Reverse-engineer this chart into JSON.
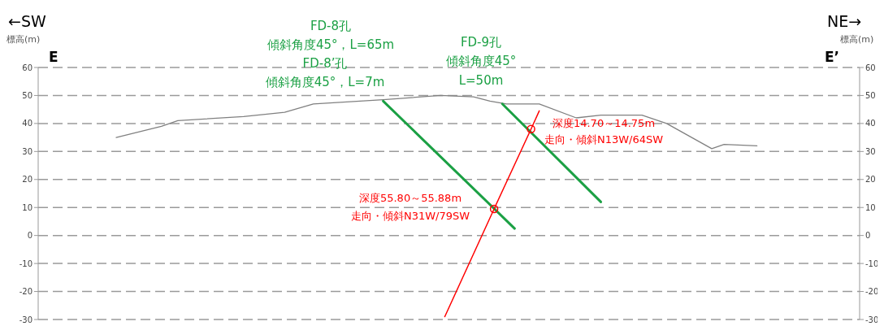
{
  "chart_data": {
    "type": "line",
    "ylabel": "標高(m)",
    "y2label": "標高(m)",
    "annotations": [
      "←SW",
      "NE→",
      "E",
      "E’",
      "FD-8孔",
      "傾斜角度45°，L=65m",
      "FD-8’孔",
      "傾斜角度45°，L=7m",
      "FD-9孔",
      "傾斜角度45°",
      "L=50m",
      "深度14.70～14.75m",
      "走向・傾斜N13W/64SW",
      "深度55.80～55.88m",
      "走向・傾斜N31W/79SW"
    ],
    "categories": [
      null,
      null,
      null,
      null,
      null,
      null,
      null,
      null,
      null,
      null,
      null,
      null,
      null,
      null,
      null,
      null,
      null,
      null,
      null,
      null,
      null,
      null,
      null,
      null,
      null,
      null,
      null,
      null,
      null,
      null,
      null,
      null,
      null,
      null,
      null,
      null,
      null,
      null,
      null,
      null,
      null,
      null,
      null,
      null,
      null,
      null,
      null,
      null,
      null,
      null,
      null,
      null,
      null,
      null,
      null,
      null,
      null,
      null,
      null,
      null,
      null,
      null,
      null,
      null,
      null,
      null,
      null,
      null,
      null,
      null,
      null,
      null,
      null,
      null,
      null,
      null,
      null,
      null,
      null,
      null,
      null,
      null,
      null,
      null,
      null,
      null,
      null,
      null,
      null,
      null,
      null,
      null,
      null,
      null,
      null,
      null,
      null,
      null,
      null,
      null,
      null,
      null,
      null,
      null,
      null,
      null,
      null,
      null,
      null,
      null,
      null,
      null,
      null,
      null,
      null,
      null,
      null,
      null,
      null,
      null,
      null,
      null,
      null,
      null,
      null,
      null,
      null,
      null,
      null,
      null,
      null,
      null,
      null,
      null,
      null,
      null,
      null,
      null,
      null,
      null,
      null,
      null,
      null,
      null,
      null,
      null,
      null,
      null,
      null,
      null,
      null,
      null,
      null,
      null,
      null,
      null,
      null,
      null,
      null,
      null,
      null,
      null,
      null,
      null,
      null,
      null,
      null,
      null,
      null,
      null,
      null,
      null,
      null,
      null,
      null,
      null,
      null,
      null,
      null,
      null,
      null,
      null,
      null,
      null,
      null,
      null,
      null,
      null,
      null,
      null,
      null,
      null,
      null,
      null,
      null,
      null,
      null,
      null,
      null,
      null,
      null
    ],
    "series": [
      {
        "type": "line",
        "color": "#808080",
        "values": [
          null,
          null,
          null,
          null,
          null,
          null,
          null,
          null,
          null,
          null,
          null,
          null,
          null,
          null,
          null,
          null,
          null,
          null,
          null,
          35,
          null,
          null,
          null,
          null,
          null,
          null,
          null,
          null,
          null,
          null,
          39,
          null,
          null,
          null,
          41,
          null,
          null,
          null,
          null,
          null,
          null,
          null,
          null,
          null,
          null,
          null,
          null,
          null,
          null,
          null,
          42.5,
          null,
          null,
          null,
          null,
          null,
          null,
          null,
          null,
          null,
          44,
          null,
          null,
          null,
          null,
          null,
          null,
          47,
          null,
          null,
          null,
          null,
          null,
          null,
          null,
          null,
          null,
          null,
          null,
          null,
          null,
          null,
          null,
          null,
          48.5,
          null,
          null,
          null,
          null,
          null,
          null,
          null,
          null,
          null,
          null,
          null,
          null,
          null,
          50,
          null,
          null,
          null,
          null,
          null,
          null,
          null,
          49.5,
          null,
          null,
          null,
          48,
          null,
          null,
          null,
          47,
          null,
          null,
          null,
          null,
          null,
          null,
          null,
          47,
          null,
          null,
          null,
          null,
          null,
          null,
          null,
          null,
          42,
          null,
          null,
          null,
          null,
          null,
          43,
          null,
          null,
          null,
          null,
          null,
          null,
          null,
          null,
          null,
          43,
          null,
          null,
          null,
          null,
          null,
          40,
          null,
          null,
          null,
          null,
          null,
          null,
          null,
          null,
          null,
          null,
          31,
          null,
          null,
          32.5,
          null,
          null,
          null,
          null,
          null,
          null,
          null,
          32,
          null,
          null,
          null,
          null,
          null,
          null,
          null,
          null,
          null,
          null,
          null,
          null,
          null,
          null,
          null,
          null,
          null,
          null,
          null,
          null,
          null,
          null,
          null,
          null,
          null
        ]
      },
      {
        "type": "line",
        "color": "#1ba044",
        "values": [
          null,
          null,
          null,
          null,
          null,
          null,
          null,
          null,
          null,
          null,
          null,
          null,
          null,
          null,
          null,
          null,
          null,
          null,
          null,
          null,
          null,
          null,
          null,
          null,
          null,
          null,
          null,
          null,
          null,
          null,
          null,
          null,
          null,
          null,
          null,
          null,
          null,
          null,
          null,
          null,
          null,
          null,
          null,
          null,
          null,
          null,
          null,
          null,
          null,
          null,
          null,
          null,
          null,
          null,
          null,
          null,
          null,
          null,
          null,
          null,
          null,
          null,
          null,
          null,
          null,
          null,
          null,
          null,
          null,
          null,
          null,
          null,
          null,
          null,
          null,
          null,
          null,
          null,
          null,
          null,
          null,
          null,
          null,
          null,
          48,
          null,
          null,
          null,
          null,
          null,
          null,
          null,
          null,
          null,
          null,
          null,
          null,
          null,
          null,
          null,
          null,
          null,
          null,
          null,
          null,
          null,
          null,
          null,
          null,
          null,
          null,
          null,
          null,
          null,
          null,
          null,
          2.5,
          null,
          null,
          null,
          null,
          null,
          null,
          null,
          null,
          null,
          null,
          null,
          null,
          null,
          null,
          null,
          null,
          null,
          null,
          null,
          null,
          null,
          null,
          null,
          null,
          null,
          null,
          null,
          null,
          null,
          null,
          null,
          null,
          null,
          null,
          null,
          null,
          null,
          null,
          null,
          null,
          null,
          null,
          null,
          null,
          null,
          null,
          null,
          null,
          null,
          null,
          null,
          null,
          null,
          null,
          null,
          null,
          null,
          null,
          null,
          null,
          null,
          null,
          null,
          null,
          null,
          null,
          null,
          null,
          null,
          null,
          null,
          null,
          null,
          null,
          null,
          null,
          null,
          null,
          null,
          null,
          null,
          null,
          null,
          null
        ]
      },
      {
        "type": "line",
        "color": "#1ba044",
        "values": [
          null,
          null,
          null,
          null,
          null,
          null,
          null,
          null,
          null,
          null,
          null,
          null,
          null,
          null,
          null,
          null,
          null,
          null,
          null,
          null,
          null,
          null,
          null,
          null,
          null,
          null,
          null,
          null,
          null,
          null,
          null,
          null,
          null,
          null,
          null,
          null,
          null,
          null,
          null,
          null,
          null,
          null,
          null,
          null,
          null,
          null,
          null,
          null,
          null,
          null,
          null,
          null,
          null,
          null,
          null,
          null,
          null,
          null,
          null,
          null,
          null,
          null,
          null,
          null,
          null,
          null,
          null,
          null,
          null,
          null,
          null,
          null,
          null,
          null,
          null,
          null,
          null,
          null,
          null,
          null,
          null,
          null,
          null,
          null,
          null,
          null,
          null,
          null,
          null,
          null,
          null,
          null,
          null,
          null,
          null,
          null,
          null,
          null,
          null,
          null,
          null,
          null,
          null,
          null,
          null,
          null,
          null,
          null,
          null,
          null,
          null,
          null,
          null,
          47,
          null,
          null,
          null,
          null,
          null,
          null,
          null,
          null,
          null,
          null,
          null,
          null,
          null,
          null,
          null,
          null,
          null,
          null,
          null,
          null,
          null,
          null,
          null,
          12,
          null,
          null,
          null,
          null,
          null,
          null,
          null,
          null,
          null,
          null,
          null,
          null,
          null,
          null,
          null,
          null,
          null,
          null,
          null,
          null,
          null,
          null,
          null,
          null,
          null,
          null,
          null,
          null,
          null,
          null,
          null,
          null,
          null,
          null,
          null,
          null,
          null,
          null,
          null,
          null,
          null,
          null,
          null,
          null,
          null,
          null,
          null,
          null,
          null,
          null,
          null,
          null,
          null,
          null,
          null,
          null,
          null,
          null,
          null,
          null,
          null,
          null,
          null
        ]
      },
      {
        "type": "line",
        "color": "#ff0000",
        "values": [
          null,
          null,
          null,
          null,
          null,
          null,
          null,
          null,
          null,
          null,
          null,
          null,
          null,
          null,
          null,
          null,
          null,
          null,
          null,
          null,
          null,
          null,
          null,
          null,
          null,
          null,
          null,
          null,
          null,
          null,
          null,
          null,
          null,
          null,
          null,
          null,
          null,
          null,
          null,
          null,
          null,
          null,
          null,
          null,
          null,
          null,
          null,
          null,
          null,
          null,
          null,
          null,
          null,
          null,
          null,
          null,
          null,
          null,
          null,
          null,
          null,
          null,
          null,
          null,
          null,
          null,
          null,
          null,
          null,
          null,
          null,
          null,
          null,
          null,
          null,
          null,
          null,
          null,
          null,
          null,
          null,
          null,
          null,
          null,
          null,
          null,
          null,
          null,
          null,
          null,
          null,
          null,
          null,
          null,
          null,
          null,
          null,
          null,
          null,
          -29,
          null,
          null,
          null,
          null,
          null,
          null,
          null,
          null,
          null,
          null,
          null,
          9.5,
          null,
          null,
          null,
          null,
          null,
          null,
          null,
          null,
          38,
          null,
          44.5,
          null,
          null,
          null,
          null,
          null,
          null,
          null,
          null,
          null,
          null,
          null,
          null,
          null,
          null,
          null,
          null,
          null,
          null,
          null,
          null,
          null,
          null,
          null,
          null,
          null,
          null,
          null,
          null,
          null,
          null,
          null,
          null,
          null,
          null,
          null,
          null,
          null,
          null,
          null,
          null,
          null,
          null,
          null,
          null,
          null,
          null,
          null,
          null,
          null,
          null,
          null,
          null,
          null,
          null,
          null,
          null,
          null,
          null,
          null,
          null,
          null,
          null,
          null,
          null,
          null,
          null,
          null,
          null,
          null,
          null,
          null,
          null,
          null,
          null,
          null,
          null,
          null,
          null
        ]
      },
      {
        "type": "scatter",
        "color": "#ff0000",
        "marker": "circle",
        "values": [
          null,
          null,
          null,
          null,
          null,
          null,
          null,
          null,
          null,
          null,
          null,
          null,
          null,
          null,
          null,
          null,
          null,
          null,
          null,
          null,
          null,
          null,
          null,
          null,
          null,
          null,
          null,
          null,
          null,
          null,
          null,
          null,
          null,
          null,
          null,
          null,
          null,
          null,
          null,
          null,
          null,
          null,
          null,
          null,
          null,
          null,
          null,
          null,
          null,
          null,
          null,
          null,
          null,
          null,
          null,
          null,
          null,
          null,
          null,
          null,
          null,
          null,
          null,
          null,
          null,
          null,
          null,
          null,
          null,
          null,
          null,
          null,
          null,
          null,
          null,
          null,
          null,
          null,
          null,
          null,
          null,
          null,
          null,
          null,
          null,
          null,
          null,
          null,
          null,
          null,
          null,
          null,
          null,
          null,
          null,
          null,
          null,
          null,
          null,
          null,
          null,
          null,
          null,
          null,
          null,
          null,
          null,
          null,
          null,
          null,
          null,
          9.5,
          null,
          null,
          null,
          null,
          null,
          null,
          null,
          null,
          38,
          null,
          null,
          null,
          null,
          null,
          null,
          null,
          null,
          null,
          null,
          null,
          null,
          null,
          null,
          null,
          null,
          null,
          null,
          null,
          null,
          null,
          null,
          null,
          null,
          null,
          null,
          null,
          null,
          null,
          null,
          null,
          null,
          null,
          null,
          null,
          null,
          null,
          null,
          null,
          null,
          null,
          null,
          null,
          null,
          null,
          null,
          null,
          null,
          null,
          null,
          null,
          null,
          null,
          null,
          null,
          null,
          null,
          null,
          null,
          null,
          null,
          null,
          null,
          null,
          null,
          null,
          null,
          null,
          null,
          null,
          null,
          null,
          null,
          null,
          null,
          null,
          null,
          null,
          null,
          null
        ]
      }
    ],
    "ylim": [
      -30,
      60
    ],
    "yticks": [
      -30,
      -20,
      -10,
      0,
      10,
      20,
      30,
      40,
      50,
      60
    ],
    "y2lim": [
      -30,
      60
    ],
    "y2ticks": [
      -30,
      -20,
      -10,
      0,
      10,
      20,
      30,
      40,
      50,
      60
    ],
    "grid": "y",
    "tick_labels": "y"
  }
}
